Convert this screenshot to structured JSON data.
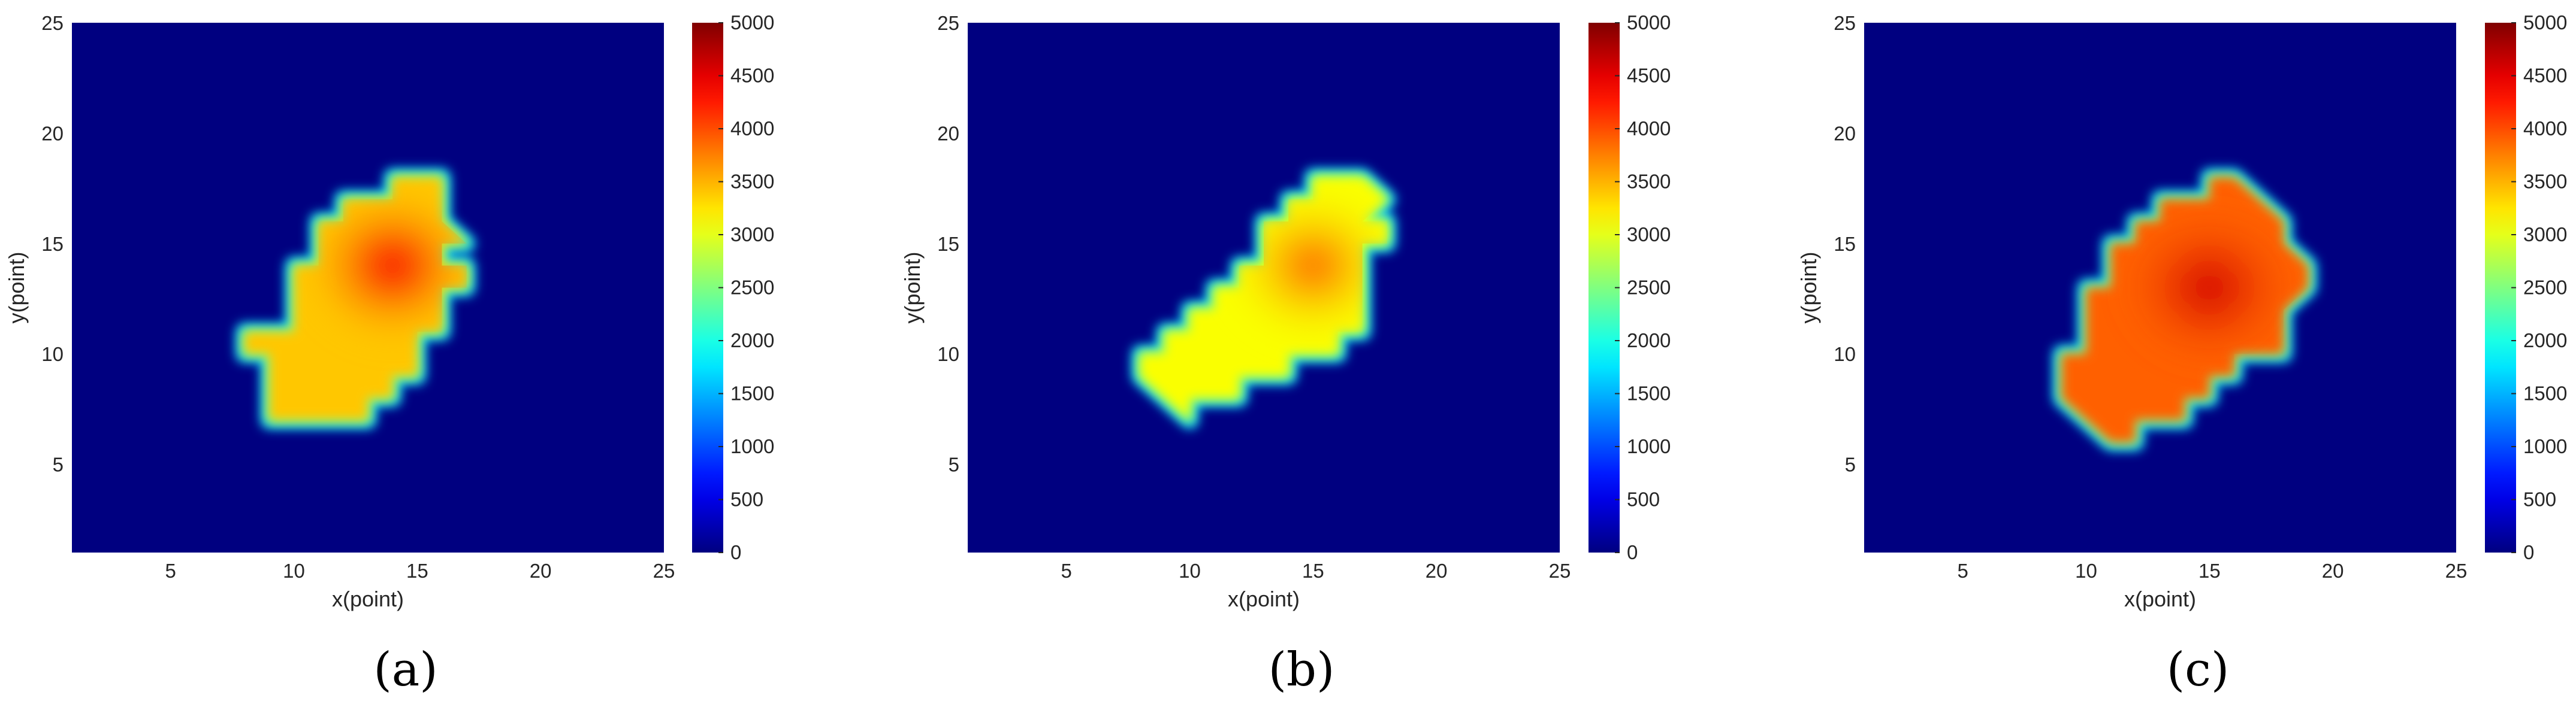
{
  "chart_data": [
    {
      "type": "heatmap",
      "panel_label": "(a)",
      "xlabel": "x(point)",
      "ylabel": "y(point)",
      "xlim": [
        1,
        25
      ],
      "ylim": [
        1,
        25
      ],
      "xticks": [
        5,
        10,
        15,
        20,
        25
      ],
      "yticks": [
        5,
        10,
        15,
        20,
        25
      ],
      "colorbar": {
        "min": 0,
        "max": 5000,
        "ticks": [
          0,
          500,
          1000,
          1500,
          2000,
          2500,
          3000,
          3500,
          4000,
          4500,
          5000
        ]
      },
      "colormap": "jet",
      "background_value": 0,
      "region_outline": [
        [
          8,
          10
        ],
        [
          9,
          10
        ],
        [
          9,
          9
        ],
        [
          9,
          8
        ],
        [
          9,
          7
        ],
        [
          10,
          7
        ],
        [
          11,
          7
        ],
        [
          12,
          7
        ],
        [
          13,
          7
        ],
        [
          13,
          8
        ],
        [
          14,
          8
        ],
        [
          14,
          9
        ],
        [
          15,
          9
        ],
        [
          15,
          10
        ],
        [
          15,
          11
        ],
        [
          16,
          11
        ],
        [
          16,
          12
        ],
        [
          16,
          13
        ],
        [
          17,
          13
        ],
        [
          17,
          14
        ],
        [
          16,
          14
        ],
        [
          16,
          15
        ],
        [
          17,
          15
        ],
        [
          16,
          16
        ],
        [
          16,
          17
        ],
        [
          16,
          18
        ],
        [
          15,
          18
        ],
        [
          14,
          18
        ],
        [
          14,
          17
        ],
        [
          13,
          17
        ],
        [
          12,
          17
        ],
        [
          12,
          16
        ],
        [
          11,
          16
        ],
        [
          11,
          15
        ],
        [
          11,
          14
        ],
        [
          10,
          14
        ],
        [
          10,
          13
        ],
        [
          10,
          12
        ],
        [
          10,
          11
        ],
        [
          9,
          11
        ],
        [
          8,
          11
        ]
      ],
      "peak_value": 4400,
      "peak_location": [
        14,
        14
      ],
      "edge_value": 3400
    },
    {
      "type": "heatmap",
      "panel_label": "(b)",
      "xlabel": "x(point)",
      "ylabel": "y(point)",
      "xlim": [
        1,
        25
      ],
      "ylim": [
        1,
        25
      ],
      "xticks": [
        5,
        10,
        15,
        20,
        25
      ],
      "yticks": [
        5,
        10,
        15,
        20,
        25
      ],
      "colorbar": {
        "min": 0,
        "max": 5000,
        "ticks": [
          0,
          500,
          1000,
          1500,
          2000,
          2500,
          3000,
          3500,
          4000,
          4500,
          5000
        ]
      },
      "colormap": "jet",
      "background_value": 0,
      "region_outline": [
        [
          8,
          9
        ],
        [
          9,
          8
        ],
        [
          10,
          7
        ],
        [
          10,
          8
        ],
        [
          11,
          8
        ],
        [
          12,
          8
        ],
        [
          12,
          9
        ],
        [
          13,
          9
        ],
        [
          14,
          9
        ],
        [
          14,
          10
        ],
        [
          15,
          10
        ],
        [
          16,
          10
        ],
        [
          16,
          11
        ],
        [
          17,
          11
        ],
        [
          17,
          12
        ],
        [
          17,
          13
        ],
        [
          17,
          14
        ],
        [
          17,
          15
        ],
        [
          18,
          15
        ],
        [
          18,
          16
        ],
        [
          17,
          16
        ],
        [
          18,
          17
        ],
        [
          17,
          18
        ],
        [
          16,
          18
        ],
        [
          15,
          18
        ],
        [
          15,
          17
        ],
        [
          14,
          17
        ],
        [
          14,
          16
        ],
        [
          13,
          16
        ],
        [
          13,
          15
        ],
        [
          13,
          14
        ],
        [
          12,
          14
        ],
        [
          12,
          13
        ],
        [
          11,
          13
        ],
        [
          11,
          12
        ],
        [
          10,
          12
        ],
        [
          10,
          11
        ],
        [
          9,
          11
        ],
        [
          9,
          10
        ],
        [
          8,
          10
        ]
      ],
      "peak_value": 3900,
      "peak_location": [
        15,
        14
      ],
      "edge_value": 3100
    },
    {
      "type": "heatmap",
      "panel_label": "(c)",
      "xlabel": "x(point)",
      "ylabel": "y(point)",
      "xlim": [
        1,
        25
      ],
      "ylim": [
        1,
        25
      ],
      "xticks": [
        5,
        10,
        15,
        20,
        25
      ],
      "yticks": [
        5,
        10,
        15,
        20,
        25
      ],
      "colorbar": {
        "min": 0,
        "max": 5000,
        "ticks": [
          0,
          500,
          1000,
          1500,
          2000,
          2500,
          3000,
          3500,
          4000,
          4500,
          5000
        ]
      },
      "colormap": "jet",
      "background_value": 0,
      "region_outline": [
        [
          9,
          8
        ],
        [
          10,
          7
        ],
        [
          11,
          6
        ],
        [
          12,
          6
        ],
        [
          12,
          7
        ],
        [
          13,
          7
        ],
        [
          14,
          7
        ],
        [
          14,
          8
        ],
        [
          15,
          8
        ],
        [
          15,
          9
        ],
        [
          16,
          9
        ],
        [
          16,
          10
        ],
        [
          17,
          10
        ],
        [
          18,
          10
        ],
        [
          18,
          11
        ],
        [
          18,
          12
        ],
        [
          19,
          13
        ],
        [
          19,
          14
        ],
        [
          18,
          15
        ],
        [
          18,
          16
        ],
        [
          17,
          17
        ],
        [
          16,
          18
        ],
        [
          15,
          18
        ],
        [
          15,
          17
        ],
        [
          14,
          17
        ],
        [
          13,
          17
        ],
        [
          13,
          16
        ],
        [
          12,
          16
        ],
        [
          12,
          15
        ],
        [
          11,
          15
        ],
        [
          11,
          14
        ],
        [
          11,
          13
        ],
        [
          10,
          13
        ],
        [
          10,
          12
        ],
        [
          10,
          11
        ],
        [
          10,
          10
        ],
        [
          9,
          10
        ],
        [
          9,
          9
        ],
        [
          9,
          8
        ]
      ],
      "peak_value": 4600,
      "peak_location": [
        15,
        13
      ],
      "edge_value": 3900
    }
  ]
}
